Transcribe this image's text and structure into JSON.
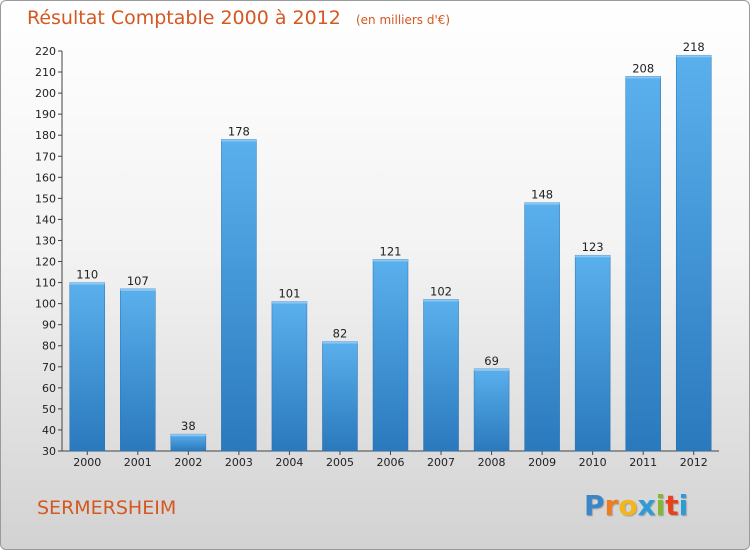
{
  "chart_data": {
    "type": "bar",
    "title": "Résultat Comptable 2000 à 2012",
    "subtitle": "(en milliers d'€)",
    "categories": [
      "2000",
      "2001",
      "2002",
      "2003",
      "2004",
      "2005",
      "2006",
      "2007",
      "2008",
      "2009",
      "2010",
      "2011",
      "2012"
    ],
    "values": [
      110,
      107,
      38,
      178,
      101,
      82,
      121,
      102,
      69,
      148,
      123,
      208,
      218
    ],
    "ylim": [
      30,
      220
    ],
    "yticks": [
      30,
      40,
      50,
      60,
      70,
      80,
      90,
      100,
      110,
      120,
      130,
      140,
      150,
      160,
      170,
      180,
      190,
      200,
      210,
      220
    ],
    "grid": false,
    "bar_color": "#4a9be0"
  },
  "commune": "SERMERSHEIM",
  "brand": {
    "letters": [
      "P",
      "r",
      "o",
      "x",
      "i",
      "t",
      "i"
    ],
    "colors": [
      "#3a86c8",
      "#f07c1e",
      "#f3b71b",
      "#2f9ad8",
      "#84b82f",
      "#e8421c",
      "#2f9ad8"
    ]
  }
}
